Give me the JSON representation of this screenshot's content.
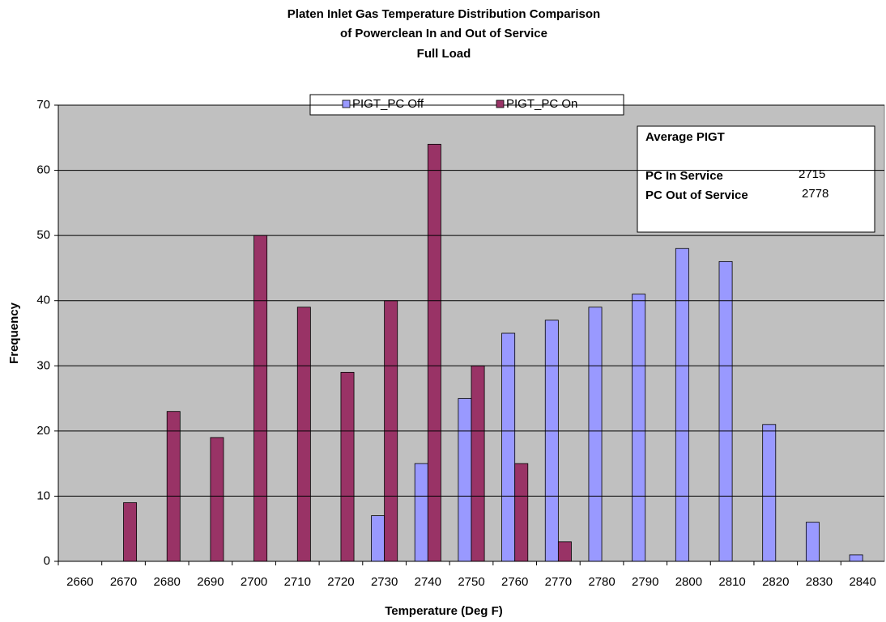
{
  "chart_data": {
    "type": "bar",
    "title": [
      "Platen Inlet Gas Temperature  Distribution Comparison",
      "of Powerclean In and Out of Service",
      "Full Load"
    ],
    "x_label": "Temperature (Deg F)",
    "y_label": "Frequency",
    "categories": [
      "2660",
      "2670",
      "2680",
      "2690",
      "2700",
      "2710",
      "2720",
      "2730",
      "2740",
      "2750",
      "2760",
      "2770",
      "2780",
      "2790",
      "2800",
      "2810",
      "2820",
      "2830",
      "2840"
    ],
    "series": [
      {
        "name": "PIGT_PC Off",
        "color": "#9999ff",
        "values": [
          0,
          0,
          0,
          0,
          0,
          0,
          0,
          7,
          15,
          25,
          35,
          37,
          39,
          41,
          48,
          46,
          21,
          6,
          1
        ]
      },
      {
        "name": "PIGT_PC On",
        "color": "#993366",
        "values": [
          0,
          9,
          23,
          19,
          50,
          39,
          29,
          40,
          64,
          30,
          15,
          3,
          0,
          0,
          0,
          0,
          0,
          0,
          0
        ]
      }
    ],
    "ylim": [
      0,
      70
    ],
    "yticks": [
      0,
      10,
      20,
      30,
      40,
      50,
      60,
      70
    ],
    "grid": true,
    "legend": "top",
    "annotation": {
      "title": "Average PIGT",
      "rows": [
        {
          "label": "PC In Service",
          "value": 2715
        },
        {
          "label": "PC Out of Service",
          "value": 2778
        }
      ]
    }
  }
}
